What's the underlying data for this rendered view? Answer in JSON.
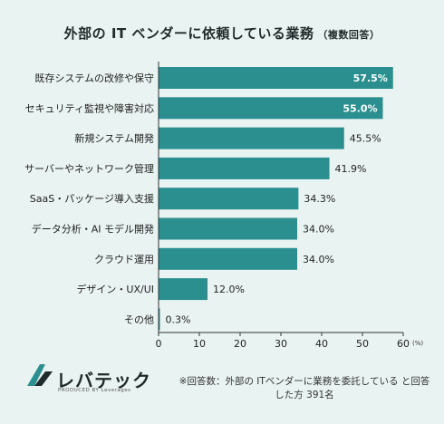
{
  "title": "外部の IT ベンダーに依頼している業務",
  "subtitle": "（複数回答）",
  "chart_data": {
    "type": "bar",
    "orientation": "horizontal",
    "categories": [
      "既存システムの改修や保守",
      "セキュリティ監視や障害対応",
      "新規システム開発",
      "サーバーやネットワーク管理",
      "SaaS・パッケージ導入支援",
      "データ分析・AI モデル開発",
      "クラウド運用",
      "デザイン・UX/UI",
      "その他"
    ],
    "values": [
      57.5,
      55.0,
      45.5,
      41.9,
      34.3,
      34.0,
      34.0,
      12.0,
      0.3
    ],
    "value_labels": [
      "57.5%",
      "55.0%",
      "45.5%",
      "41.9%",
      "34.3%",
      "34.0%",
      "34.0%",
      "12.0%",
      "0.3%"
    ],
    "xlim": [
      0,
      60
    ],
    "xticks": [
      0,
      10,
      20,
      30,
      40,
      50,
      60
    ],
    "x_unit": "(%)",
    "bar_color": "#2b8f8f",
    "grid": false,
    "legend": false
  },
  "logo": {
    "text": "レバテック",
    "sub": "PRODUCED BY Leverages"
  },
  "footnote": "※回答数：外部の ITベンダーに業務を委託している と回答した方 391名"
}
